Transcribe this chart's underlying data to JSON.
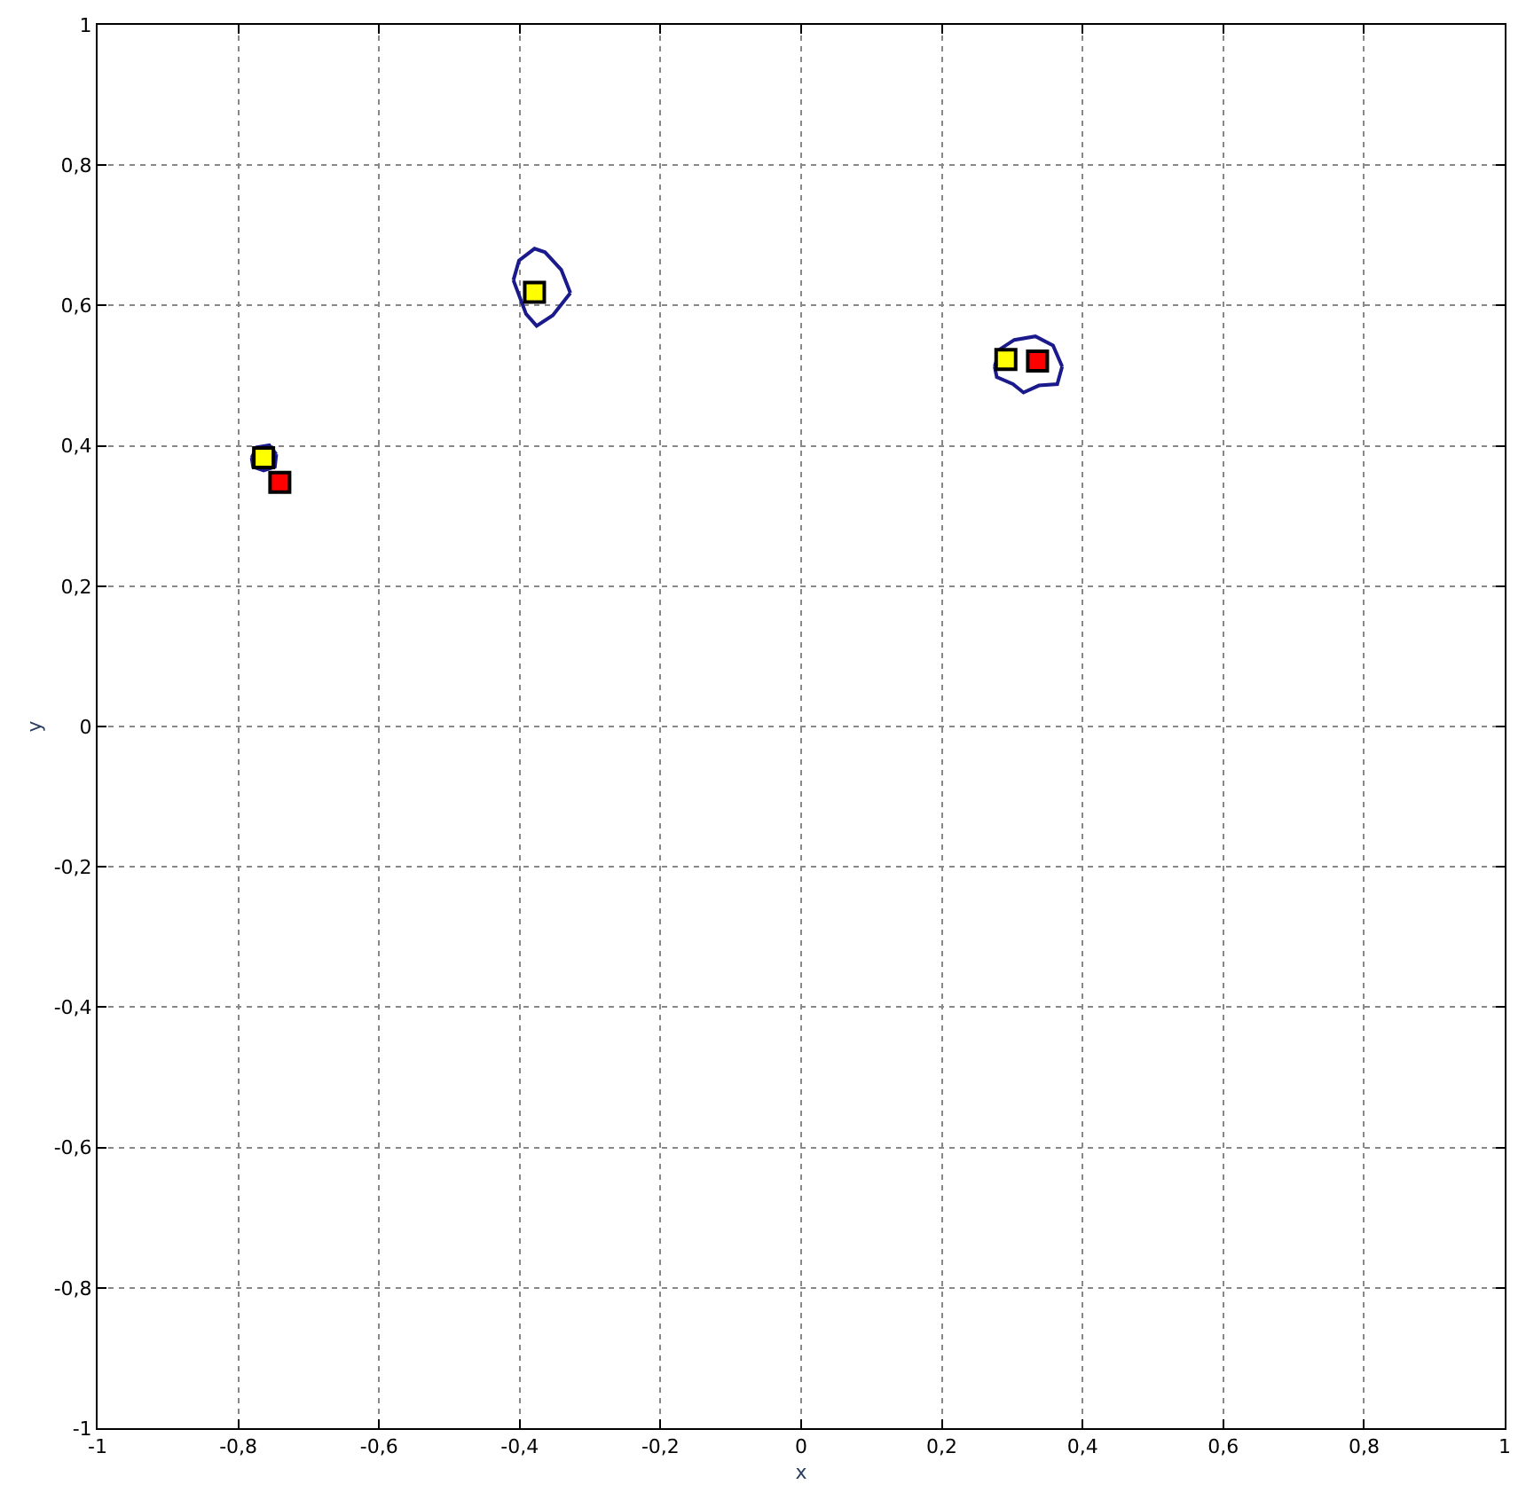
{
  "chart_data": {
    "type": "scatter",
    "xlabel": "x",
    "ylabel": "y",
    "xlim": [
      -1,
      1
    ],
    "ylim": [
      -1,
      1
    ],
    "xticks": [
      {
        "value": -1,
        "label": "-1"
      },
      {
        "value": -0.8,
        "label": "-0,8"
      },
      {
        "value": -0.6,
        "label": "-0,6"
      },
      {
        "value": -0.4,
        "label": "-0,4"
      },
      {
        "value": -0.2,
        "label": "-0,2"
      },
      {
        "value": 0,
        "label": "0"
      },
      {
        "value": 0.2,
        "label": "0,2"
      },
      {
        "value": 0.4,
        "label": "0,4"
      },
      {
        "value": 0.6,
        "label": "0,6"
      },
      {
        "value": 0.8,
        "label": "0,8"
      },
      {
        "value": 1,
        "label": "1"
      }
    ],
    "yticks": [
      {
        "value": -1,
        "label": "-1"
      },
      {
        "value": -0.8,
        "label": "-0,8"
      },
      {
        "value": -0.6,
        "label": "-0,6"
      },
      {
        "value": -0.4,
        "label": "-0,4"
      },
      {
        "value": -0.2,
        "label": "-0,2"
      },
      {
        "value": 0,
        "label": "0"
      },
      {
        "value": 0.2,
        "label": "0,2"
      },
      {
        "value": 0.4,
        "label": "0,4"
      },
      {
        "value": 0.6,
        "label": "0,6"
      },
      {
        "value": 0.8,
        "label": "0,8"
      },
      {
        "value": 1,
        "label": "1"
      }
    ],
    "grid": true,
    "line_style": "dotted",
    "series": [
      {
        "type": "line",
        "color": "#1a1a8c",
        "marker": "none",
        "line_style": "solid",
        "x": [
          -0.781,
          -0.774,
          -0.756,
          -0.746
        ],
        "values": [
          0.383,
          0.398,
          0.401,
          0.388
        ]
      },
      {
        "type": "line",
        "color": "#1a1a8c",
        "marker": "none",
        "line_style": "solid",
        "x": [
          -0.781,
          -0.779,
          -0.764,
          -0.748,
          -0.746
        ],
        "values": [
          0.383,
          0.37,
          0.365,
          0.37,
          0.388
        ]
      },
      {
        "type": "line",
        "color": "#1a1a8c",
        "marker": "none",
        "line_style": "solid",
        "x": [
          -0.409,
          -0.401,
          -0.379,
          -0.364,
          -0.341,
          -0.328
        ],
        "values": [
          0.636,
          0.664,
          0.681,
          0.676,
          0.651,
          0.618
        ]
      },
      {
        "type": "line",
        "color": "#1a1a8c",
        "marker": "none",
        "line_style": "solid",
        "x": [
          -0.409,
          -0.391,
          -0.376,
          -0.353,
          -0.328
        ],
        "values": [
          0.636,
          0.588,
          0.571,
          0.586,
          0.618
        ]
      },
      {
        "type": "line",
        "color": "#1a1a8c",
        "marker": "none",
        "line_style": "solid",
        "x": [
          0.275,
          0.283,
          0.303,
          0.333,
          0.358,
          0.371
        ],
        "values": [
          0.513,
          0.538,
          0.551,
          0.556,
          0.543,
          0.513
        ]
      },
      {
        "type": "line",
        "color": "#1a1a8c",
        "marker": "none",
        "line_style": "solid",
        "x": [
          0.275,
          0.278,
          0.301,
          0.316,
          0.338,
          0.364,
          0.371
        ],
        "values": [
          0.513,
          0.498,
          0.488,
          0.476,
          0.486,
          0.488,
          0.513
        ]
      },
      {
        "color": "#ffff00",
        "marker": "square",
        "x": [
          -0.764,
          -0.379,
          0.291
        ],
        "values": [
          0.383,
          0.619,
          0.523
        ]
      },
      {
        "color": "#ff0000",
        "marker": "square",
        "x": [
          -0.741,
          0.336
        ],
        "values": [
          0.348,
          0.521
        ]
      }
    ]
  }
}
